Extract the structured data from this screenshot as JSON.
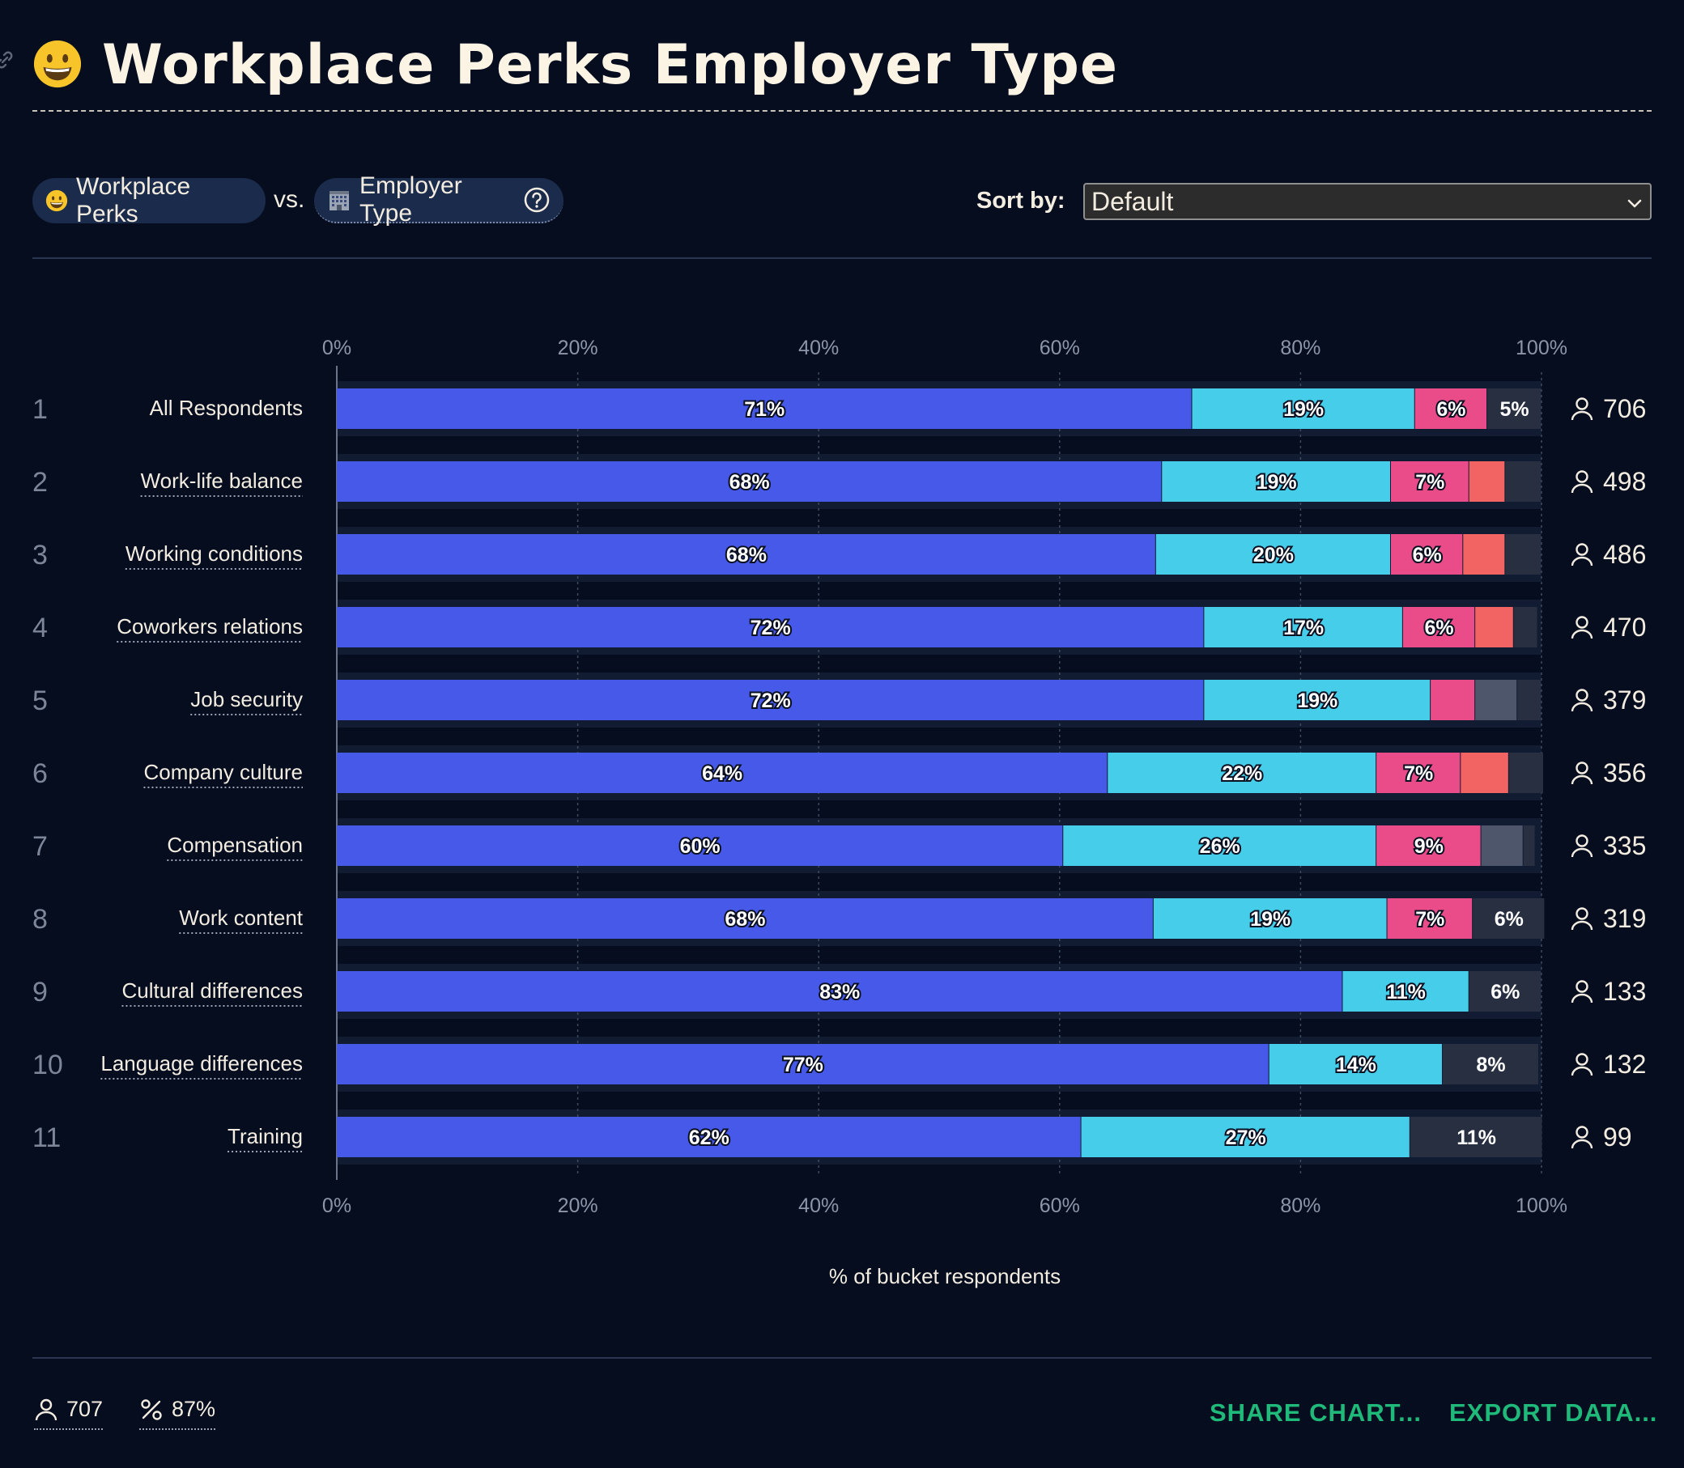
{
  "header": {
    "title": "Workplace Perks Employer Type"
  },
  "controls": {
    "pill_left_label": "Workplace Perks",
    "vs_label": "vs.",
    "pill_right_label": "Employer Type",
    "sort_label": "Sort by:",
    "sort_value": "Default"
  },
  "chart_data": {
    "type": "bar",
    "orientation": "horizontal",
    "stacked": true,
    "xlabel": "% of bucket respondents",
    "xlim": [
      0,
      100
    ],
    "x_ticks": [
      "0%",
      "20%",
      "40%",
      "60%",
      "80%",
      "100%"
    ],
    "grid": true,
    "categories": [
      "All Respondents",
      "Work-life balance",
      "Working conditions",
      "Coworkers relations",
      "Job security",
      "Company culture",
      "Compensation",
      "Work content",
      "Cultural differences",
      "Language differences",
      "Training"
    ],
    "ranks": [
      "1",
      "2",
      "3",
      "4",
      "5",
      "6",
      "7",
      "8",
      "9",
      "10",
      "11"
    ],
    "counts": [
      "706",
      "498",
      "486",
      "470",
      "379",
      "356",
      "335",
      "319",
      "133",
      "132",
      "99"
    ],
    "series_colors": [
      "#4659e8",
      "#46cdea",
      "#ea4c89",
      "#f26464",
      "#4d566b",
      "#272f40"
    ],
    "segments": [
      [
        {
          "value": 71,
          "color": 0,
          "label": "71%"
        },
        {
          "value": 18.5,
          "color": 1,
          "label": "19%"
        },
        {
          "value": 6,
          "color": 2,
          "label": "6%"
        },
        {
          "value": 4.5,
          "color": 5,
          "label": "5%"
        }
      ],
      [
        {
          "value": 68.5,
          "color": 0,
          "label": "68%"
        },
        {
          "value": 19,
          "color": 1,
          "label": "19%"
        },
        {
          "value": 6.5,
          "color": 2,
          "label": "7%"
        },
        {
          "value": 3,
          "color": 3,
          "label": ""
        },
        {
          "value": 3,
          "color": 5,
          "label": ""
        }
      ],
      [
        {
          "value": 68,
          "color": 0,
          "label": "68%"
        },
        {
          "value": 19.5,
          "color": 1,
          "label": "20%"
        },
        {
          "value": 6,
          "color": 2,
          "label": "6%"
        },
        {
          "value": 3.5,
          "color": 3,
          "label": ""
        },
        {
          "value": 3,
          "color": 5,
          "label": ""
        }
      ],
      [
        {
          "value": 72,
          "color": 0,
          "label": "72%"
        },
        {
          "value": 16.5,
          "color": 1,
          "label": "17%"
        },
        {
          "value": 6,
          "color": 2,
          "label": "6%"
        },
        {
          "value": 3.2,
          "color": 3,
          "label": ""
        },
        {
          "value": 2,
          "color": 5,
          "label": ""
        }
      ],
      [
        {
          "value": 72,
          "color": 0,
          "label": "72%"
        },
        {
          "value": 18.8,
          "color": 1,
          "label": "19%"
        },
        {
          "value": 3.7,
          "color": 2,
          "label": ""
        },
        {
          "value": 3.5,
          "color": 4,
          "label": ""
        },
        {
          "value": 2,
          "color": 5,
          "label": ""
        }
      ],
      [
        {
          "value": 64,
          "color": 0,
          "label": "64%"
        },
        {
          "value": 22.3,
          "color": 1,
          "label": "22%"
        },
        {
          "value": 7,
          "color": 2,
          "label": "7%"
        },
        {
          "value": 4,
          "color": 3,
          "label": ""
        },
        {
          "value": 2.9,
          "color": 5,
          "label": ""
        }
      ],
      [
        {
          "value": 60.3,
          "color": 0,
          "label": "60%"
        },
        {
          "value": 26,
          "color": 1,
          "label": "26%"
        },
        {
          "value": 8.7,
          "color": 2,
          "label": "9%"
        },
        {
          "value": 3.5,
          "color": 4,
          "label": ""
        },
        {
          "value": 1,
          "color": 5,
          "label": ""
        }
      ],
      [
        {
          "value": 67.8,
          "color": 0,
          "label": "68%"
        },
        {
          "value": 19.4,
          "color": 1,
          "label": "19%"
        },
        {
          "value": 7.1,
          "color": 2,
          "label": "7%"
        },
        {
          "value": 6,
          "color": 5,
          "label": "6%"
        }
      ],
      [
        {
          "value": 83.5,
          "color": 0,
          "label": "83%"
        },
        {
          "value": 10.5,
          "color": 1,
          "label": "11%"
        },
        {
          "value": 6,
          "color": 5,
          "label": "6%"
        }
      ],
      [
        {
          "value": 77.4,
          "color": 0,
          "label": "77%"
        },
        {
          "value": 14.4,
          "color": 1,
          "label": "14%"
        },
        {
          "value": 8,
          "color": 5,
          "label": "8%"
        }
      ],
      [
        {
          "value": 61.8,
          "color": 0,
          "label": "62%"
        },
        {
          "value": 27.3,
          "color": 1,
          "label": "27%"
        },
        {
          "value": 11,
          "color": 5,
          "label": "11%"
        }
      ]
    ]
  },
  "footer": {
    "respondents": "707",
    "percent": "87%",
    "share_label": "SHARE CHART...",
    "export_label": "EXPORT DATA..."
  }
}
